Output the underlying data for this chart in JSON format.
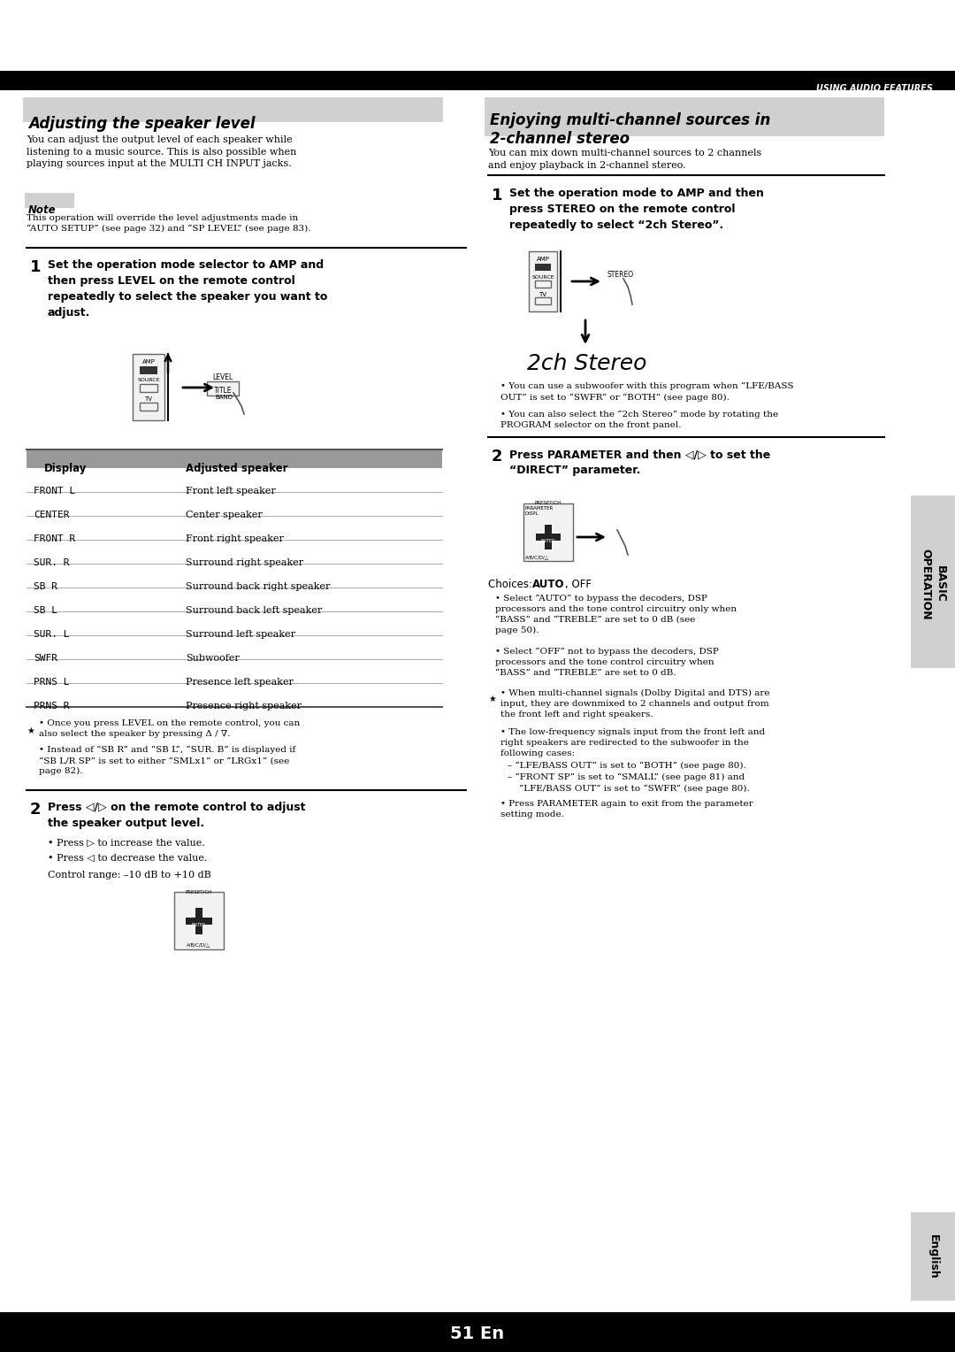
{
  "page_bg": "#ffffff",
  "header_bg": "#000000",
  "header_text": "USING AUDIO FEATURES",
  "header_text_color": "#ffffff",
  "section1_title": "Adjusting the speaker level",
  "section1_title_bg": "#d0d0d0",
  "section2_title_line1": "Enjoying multi-channel sources in",
  "section2_title_line2": "2-channel stereo",
  "section2_title_bg": "#d0d0d0",
  "section1_intro": "You can adjust the output level of each speaker while\nlistening to a music source. This is also possible when\nplaying sources input at the MULTI CH INPUT jacks.",
  "section2_intro": "You can mix down multi-channel sources to 2 channels\nand enjoy playback in 2-channel stereo.",
  "note_label": "Note",
  "note_bg": "#d0d0d0",
  "note_text": "This operation will override the level adjustments made in\n“AUTO SETUP” (see page 32) and “SP LEVEL” (see page 83).",
  "step1_left_text": "Set the operation mode selector to AMP and\nthen press LEVEL on the remote control\nrepeatedly to select the speaker you want to\nadjust.",
  "step1_right_text": "Set the operation mode to AMP and then\npress STEREO on the remote control\nrepeatedly to select “2ch Stereo”.",
  "table_header": [
    "Display",
    "Adjusted speaker"
  ],
  "table_rows": [
    [
      "FRONT L",
      "Front left speaker"
    ],
    [
      "CENTER",
      "Center speaker"
    ],
    [
      "FRONT R",
      "Front right speaker"
    ],
    [
      "SUR. R",
      "Surround right speaker"
    ],
    [
      "SB R",
      "Surround back right speaker"
    ],
    [
      "SB L",
      "Surround back left speaker"
    ],
    [
      "SUR. L",
      "Surround left speaker"
    ],
    [
      "SWFR",
      "Subwoofer"
    ],
    [
      "PRNS L",
      "Presence left speaker"
    ],
    [
      "PRNS R",
      "Presence right speaker"
    ]
  ],
  "tip_text1_left": "Once you press LEVEL on the remote control, you can\nalso select the speaker by pressing Δ / ∇.",
  "tip_text2_left": "Instead of “SB R” and “SB L”, “SUR. B” is displayed if\n“SB L/R SP” is set to either “SMLx1” or “LRGx1” (see\npage 82).",
  "step2_left_text": "Press ◁/▷ on the remote control to adjust\nthe speaker output level.",
  "step2_left_bullet1": "Press ▷ to increase the value.",
  "step2_left_bullet2": "Press ◁ to decrease the value.",
  "step2_left_control": "Control range: –10 dB to +10 dB",
  "step2_right_text": "Press PARAMETER and then ◁/▷ to set the\n“DIRECT” parameter.",
  "choices_text": "Choices: ",
  "choices_auto": "AUTO",
  "choices_off": ", OFF",
  "choices_bullet1": "Select “AUTO” to bypass the decoders, DSP\nprocessors and the tone control circuitry only when\n“BASS” and “TREBLE” are set to 0 dB (see\npage 50).",
  "choices_bullet2": "Select “OFF” not to bypass the decoders, DSP\nprocessors and the tone control circuitry when\n“BASS” and “TREBLE” are set to 0 dB.",
  "tip_right1": "When multi-channel signals (Dolby Digital and DTS) are\ninput, they are downmixed to 2 channels and output from\nthe front left and right speakers.",
  "tip_right2": "The low-frequency signals input from the front left and\nright speakers are redirected to the subwoofer in the\nfollowing cases:",
  "tip_right3a": "– “LFE/BASS OUT” is set to “BOTH” (see page 80).",
  "tip_right3b": "– “FRONT SP” is set to “SMALL” (see page 81) and",
  "tip_right3c": "    “LFE/BASS OUT” is set to “SWFR” (see page 80).",
  "tip_right4": "Press PARAMETER again to exit from the parameter\nsetting mode.",
  "sidebar_text": "BASIC\nOPERATION",
  "sidebar_bg": "#d0d0d0",
  "english_text": "English",
  "english_bg": "#d0d0d0",
  "page_number": "51 En",
  "page_number_bg": "#000000",
  "page_number_color": "#ffffff",
  "tip_right_subwoofer": "You can use a subwoofer with this program when “LFE/BASS\nOUT” is set to “SWFR” or “BOTH” (see page 80).",
  "tip_right_2ch": "You can also select the “2ch Stereo” mode by rotating the\nPROGRAM selector on the front panel.",
  "stereo_display": "2ch Stereo"
}
